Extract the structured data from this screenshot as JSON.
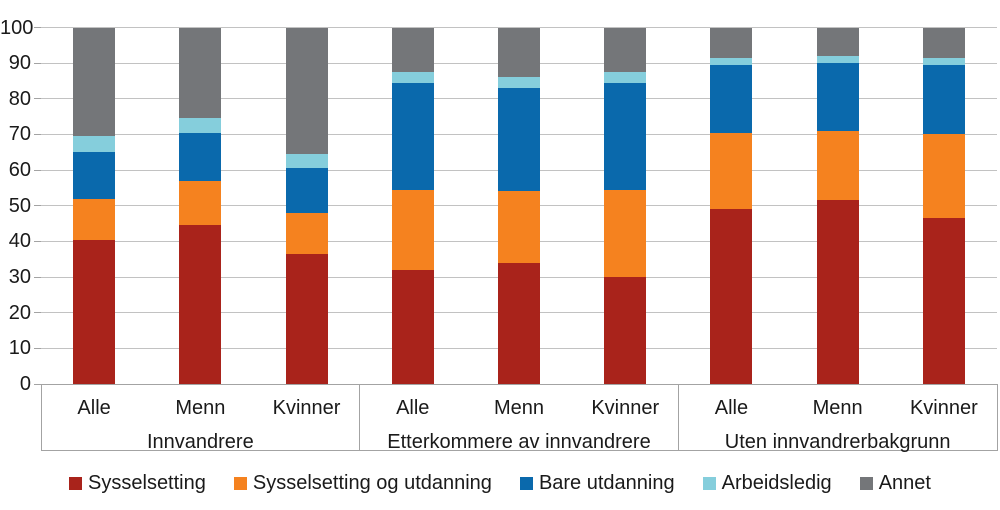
{
  "chart_data": {
    "type": "bar",
    "stacked": true,
    "units": "percent",
    "title": "",
    "xlabel": "",
    "ylabel": "",
    "ylim": [
      0,
      100
    ],
    "yticks": [
      0,
      10,
      20,
      30,
      40,
      50,
      60,
      70,
      80,
      90,
      100
    ],
    "grid": true,
    "legend_position": "bottom",
    "groups": [
      {
        "label": "Innvandrere",
        "categories": [
          "Alle",
          "Menn",
          "Kvinner"
        ]
      },
      {
        "label": "Etterkommere av innvandrere",
        "categories": [
          "Alle",
          "Menn",
          "Kvinner"
        ]
      },
      {
        "label": "Uten innvandrerbakgrunn",
        "categories": [
          "Alle",
          "Menn",
          "Kvinner"
        ]
      }
    ],
    "series": [
      {
        "name": "Sysselsetting",
        "color": "#A9231B",
        "values": [
          40.5,
          44.5,
          36.5,
          32.0,
          34.0,
          30.0,
          49.0,
          51.5,
          46.5
        ]
      },
      {
        "name": "Sysselsetting og utdanning",
        "color": "#F5821F",
        "values": [
          11.5,
          12.5,
          11.5,
          22.5,
          20.0,
          24.5,
          21.5,
          19.5,
          23.5
        ]
      },
      {
        "name": "Bare utdanning",
        "color": "#0A69AC",
        "values": [
          13.0,
          13.5,
          12.5,
          30.0,
          29.0,
          30.0,
          19.0,
          19.0,
          19.5
        ]
      },
      {
        "name": "Arbeidsledig",
        "color": "#85CEDC",
        "values": [
          4.5,
          4.0,
          4.0,
          3.0,
          3.0,
          3.0,
          2.0,
          2.0,
          2.0
        ]
      },
      {
        "name": "Annet",
        "color": "#747679",
        "values": [
          30.5,
          25.5,
          35.5,
          12.5,
          14.0,
          12.5,
          8.5,
          8.0,
          8.5
        ]
      }
    ],
    "colors": {
      "gridline": "#c2c2c2",
      "axis_box": "#a3a3a3",
      "text": "#1a1a1a"
    }
  }
}
